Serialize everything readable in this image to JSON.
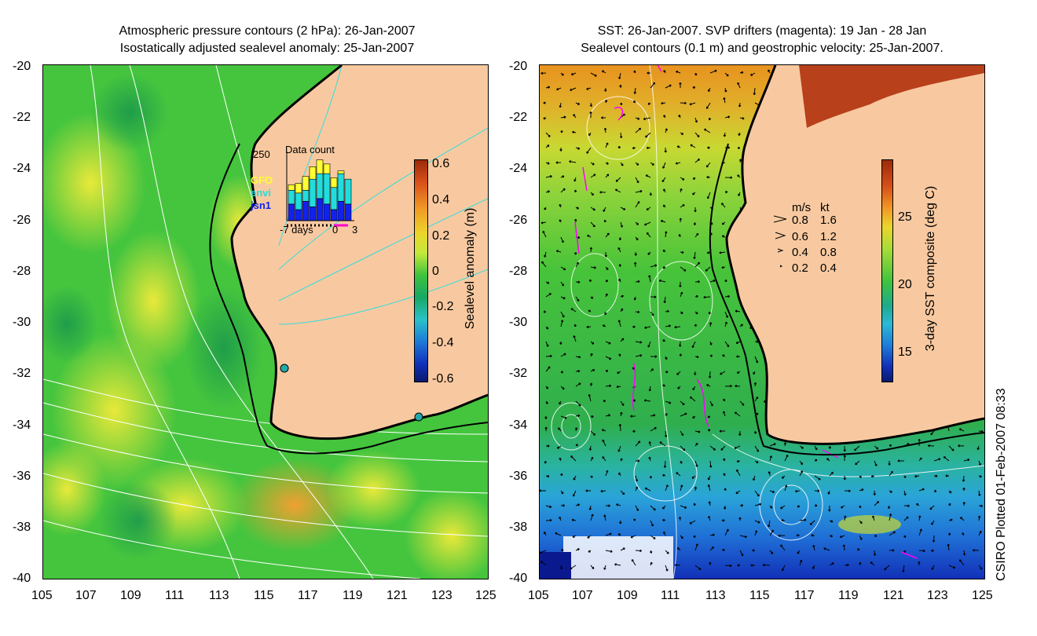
{
  "left_panel": {
    "title_line1": "Atmospheric pressure contours (2 hPa): 26-Jan-2007",
    "title_line2": "Isostatically adjusted sealevel anomaly: 25-Jan-2007",
    "colorbar": {
      "label": "Sealevel anomaly (m)",
      "ticks": [
        "0.6",
        "0.4",
        "0.2",
        "0",
        "-0.2",
        "-0.4",
        "-0.6"
      ]
    },
    "data_count": {
      "title": "Data count",
      "ymax_label": "250",
      "sources": [
        "GFO",
        "envi",
        "jsn1"
      ],
      "source_colors": [
        "#ffff33",
        "#22dddd",
        "#1122ee"
      ],
      "x_labels": [
        "-7 days",
        "0",
        "3"
      ],
      "bars": [
        {
          "jsn1": 60,
          "envi": 50,
          "gfo": 20
        },
        {
          "jsn1": 40,
          "envi": 60,
          "gfo": 35
        },
        {
          "jsn1": 70,
          "envi": 40,
          "gfo": 50
        },
        {
          "jsn1": 50,
          "envi": 100,
          "gfo": 45
        },
        {
          "jsn1": 80,
          "envi": 90,
          "gfo": 50
        },
        {
          "jsn1": 60,
          "envi": 110,
          "gfo": 35
        },
        {
          "jsn1": 40,
          "envi": 80,
          "gfo": 35
        },
        {
          "jsn1": 70,
          "envi": 100,
          "gfo": 10
        },
        {
          "jsn1": 60,
          "envi": 90,
          "gfo": 0
        }
      ]
    }
  },
  "right_panel": {
    "title_line1": "SST: 26-Jan-2007. SVP drifters (magenta): 19 Jan - 28 Jan",
    "title_line2": "Sealevel contours (0.1 m) and geostrophic velocity: 25-Jan-2007.",
    "colorbar": {
      "label": "3-day SST composite (deg C)",
      "ticks": [
        "25",
        "20",
        "15"
      ]
    },
    "velocity_legend": {
      "header_ms": "m/s",
      "header_kt": "kt",
      "rows": [
        {
          "ms": "0.8",
          "kt": "1.6"
        },
        {
          "ms": "0.6",
          "kt": "1.2"
        },
        {
          "ms": "0.4",
          "kt": "0.8"
        },
        {
          "ms": "0.2",
          "kt": "0.4"
        }
      ]
    }
  },
  "axes": {
    "lat_ticks": [
      "-20",
      "-22",
      "-24",
      "-26",
      "-28",
      "-30",
      "-32",
      "-34",
      "-36",
      "-38",
      "-40"
    ],
    "lon_ticks": [
      "105",
      "107",
      "109",
      "111",
      "113",
      "115",
      "117",
      "119",
      "121",
      "123",
      "125"
    ]
  },
  "footer": {
    "plotted_stamp": "CSIRO Plotted 01-Feb-2007 08:33"
  },
  "colors": {
    "land": "#f8c9a0",
    "ocean_green": "#3ec23e",
    "coast": "#000000"
  }
}
